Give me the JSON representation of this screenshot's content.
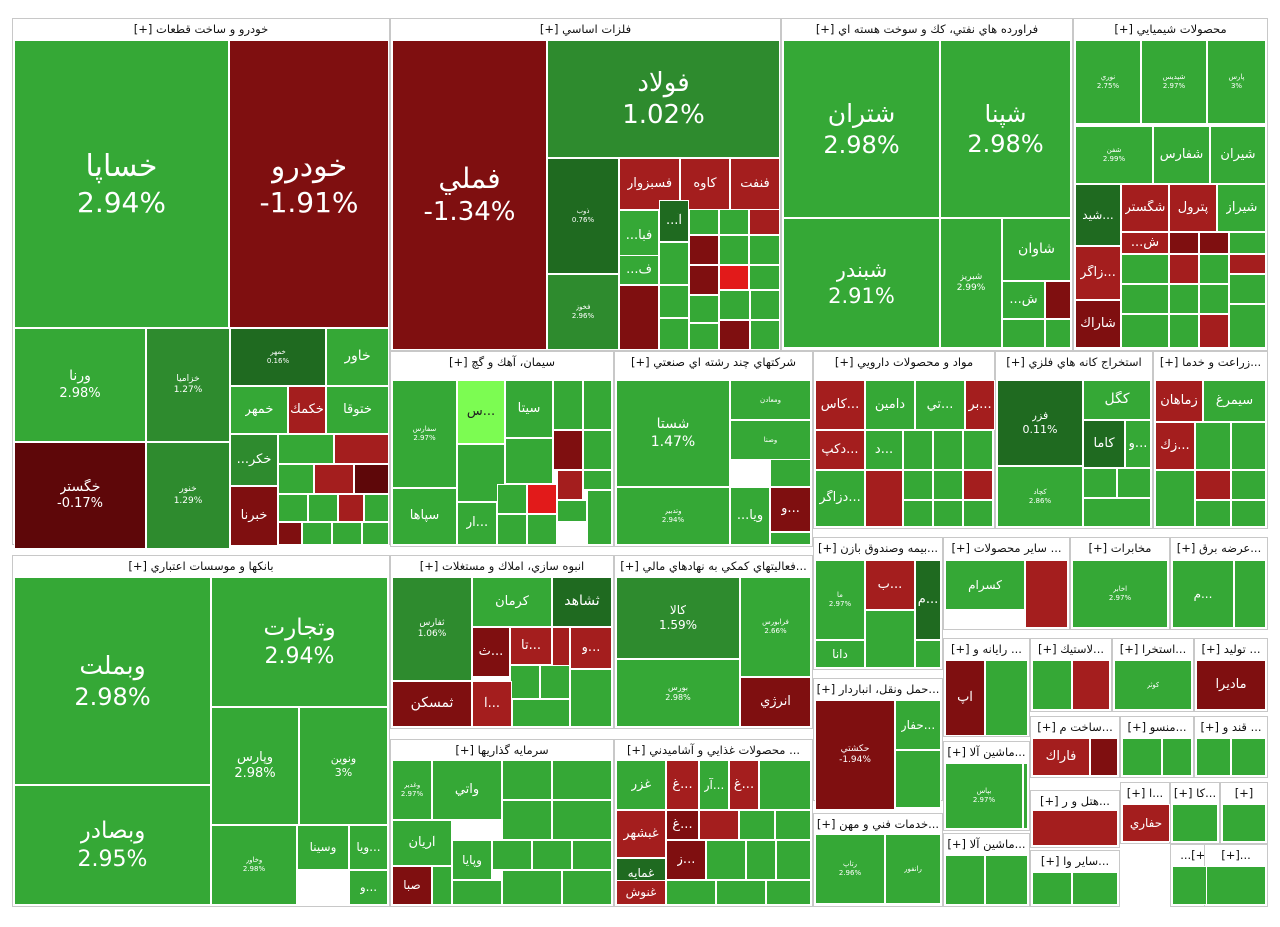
{
  "colors": {
    "pos_strong": "#35A836",
    "pos_light": "#49C23F",
    "pos_mid": "#2E8B2E",
    "pos_dark": "#1F6A20",
    "neg_mid": "#A41E1E",
    "neg_dark": "#7F0F10",
    "neg_deep": "#5E0709",
    "neg_bright": "#E21A1A",
    "lime": "#7CFC52",
    "grey": "#9E9E9E",
    "white": "#FFFFFF"
  },
  "chart_data": {
    "type": "treemap",
    "sectors": [
      {
        "name": "خودرو و ساخت قطعات [+]",
        "stocks": [
          {
            "name": "خساپا",
            "change": 2.94
          },
          {
            "name": "خودرو",
            "change": -1.91
          },
          {
            "name": "ورنا",
            "change": 2.98
          },
          {
            "name": "خزاميا",
            "change": 1.27
          },
          {
            "name": "خمهر",
            "change": 0.16
          },
          {
            "name": "خاور"
          },
          {
            "name": "خمهر"
          },
          {
            "name": "خكمك"
          },
          {
            "name": "ختوقا"
          },
          {
            "name": "خكر..."
          },
          {
            "name": "خگستر",
            "change": -0.17
          },
          {
            "name": "خنور",
            "change": 1.29
          },
          {
            "name": "خبرنا"
          }
        ]
      },
      {
        "name": "فلزات اساسي [+]",
        "stocks": [
          {
            "name": "فملي",
            "change": -1.34
          },
          {
            "name": "فولاد",
            "change": 1.02
          },
          {
            "name": "ذوب",
            "change": 0.76
          },
          {
            "name": "فخوز",
            "change": 2.96
          },
          {
            "name": "فنفت"
          },
          {
            "name": "كاوه"
          },
          {
            "name": "فسبزوار"
          },
          {
            "name": "فبا..."
          },
          {
            "name": "آ..."
          },
          {
            "name": "ف..."
          }
        ]
      },
      {
        "name": "فراورده هاي نفتي، كك و سوخت هسته اي [+]",
        "stocks": [
          {
            "name": "شتران",
            "change": 2.98
          },
          {
            "name": "شپنا",
            "change": 2.98
          },
          {
            "name": "شبندر",
            "change": 2.91
          },
          {
            "name": "شبريز",
            "change": 2.99
          },
          {
            "name": "شاوان"
          },
          {
            "name": "ش..."
          }
        ]
      },
      {
        "name": "محصولات شيميايي [+]",
        "stocks": [
          {
            "name": "نوري",
            "change": 2.75
          },
          {
            "name": "شپديس",
            "change": 2.97
          },
          {
            "name": "پارس",
            "change": 3
          },
          {
            "name": "شفن",
            "change": 2.99
          },
          {
            "name": "شفارس"
          },
          {
            "name": "شيران"
          },
          {
            "name": "...شيد"
          },
          {
            "name": "شگستر"
          },
          {
            "name": "پترول"
          },
          {
            "name": "شيراز"
          },
          {
            "name": "ش..."
          },
          {
            "name": "...زاگر"
          },
          {
            "name": "شاراك"
          }
        ]
      },
      {
        "name": "سيمان، آهك و گچ [+]",
        "stocks": [
          {
            "name": "سفارس",
            "change": 2.97
          },
          {
            "name": "...س"
          },
          {
            "name": "سيتا"
          },
          {
            "name": "سپاها"
          },
          {
            "name": "...ار"
          }
        ]
      },
      {
        "name": "شركتهاي چند رشته اي صنعتي [+]",
        "stocks": [
          {
            "name": "شستا",
            "change": 1.47
          },
          {
            "name": "وتدبير",
            "change": 2.94
          },
          {
            "name": "ومعادن"
          },
          {
            "name": "وصنا"
          },
          {
            "name": "ويا..."
          },
          {
            "name": "...و"
          }
        ]
      },
      {
        "name": "مواد و محصولات دارويي [+]",
        "stocks": [
          {
            "name": "...كاس"
          },
          {
            "name": "دامين"
          },
          {
            "name": "...تي"
          },
          {
            "name": "...دكپ"
          },
          {
            "name": "...د"
          },
          {
            "name": "...دزاگر"
          }
        ]
      },
      {
        "name": "استخراج كانه هاي فلزي [+]",
        "stocks": [
          {
            "name": "...بر"
          },
          {
            "name": "فزر",
            "change": 0.11
          },
          {
            "name": "كگل"
          },
          {
            "name": "كاما"
          },
          {
            "name": "...و"
          },
          {
            "name": "كچاد",
            "change": 2.86
          }
        ]
      },
      {
        "name": "...زراعت و خدما [+]",
        "stocks": [
          {
            "name": "زماهان"
          },
          {
            "name": "سيمرغ"
          },
          {
            "name": "...زك"
          }
        ]
      },
      {
        "name": "بانكها و موسسات اعتباري [+]",
        "stocks": [
          {
            "name": "وبملت",
            "change": 2.98
          },
          {
            "name": "وتجارت",
            "change": 2.94
          },
          {
            "name": "وپارس",
            "change": 2.98
          },
          {
            "name": "ونوين",
            "change": 3
          },
          {
            "name": "وبصادر",
            "change": 2.95
          },
          {
            "name": "وخاور",
            "change": 2.98
          },
          {
            "name": "وسينا"
          },
          {
            "name": "...ويا"
          },
          {
            "name": "...و"
          }
        ]
      },
      {
        "name": "انبوه سازي، املاك و مستغلات [+]",
        "stocks": [
          {
            "name": "ثفارس",
            "change": 1.06
          },
          {
            "name": "كرمان"
          },
          {
            "name": "ثشاهد"
          },
          {
            "name": "...ث"
          },
          {
            "name": "...تا"
          },
          {
            "name": "...و"
          },
          {
            "name": "ثمسكن"
          },
          {
            "name": "...آ"
          }
        ]
      },
      {
        "name": "...فعاليتهاي كمكي به نهادهاي مالي [+]",
        "stocks": [
          {
            "name": "كالا",
            "change": 1.59
          },
          {
            "name": "فرابورس",
            "change": 2.66
          },
          {
            "name": "بورس",
            "change": 2.98
          },
          {
            "name": "انرژي"
          }
        ]
      },
      {
        "name": "...بيمه وصندوق بازن [+]",
        "stocks": [
          {
            "name": "ما",
            "change": 2.97
          },
          {
            "name": "...ب"
          },
          {
            "name": "...م"
          },
          {
            "name": "دانا"
          }
        ]
      },
      {
        "name": "... ساير محصولات [+]",
        "stocks": [
          {
            "name": "كسرام"
          }
        ]
      },
      {
        "name": "مخابرات [+]",
        "stocks": [
          {
            "name": "اخابر",
            "change": 2.97
          }
        ]
      },
      {
        "name": "...عرضه برق [+]",
        "stocks": [
          {
            "name": "...م"
          }
        ]
      },
      {
        "name": "سرمايه گذاريها [+]",
        "stocks": [
          {
            "name": "وغدير",
            "change": 2.97
          },
          {
            "name": "واتي"
          },
          {
            "name": "آريان"
          },
          {
            "name": "وپايا"
          },
          {
            "name": "صبا"
          }
        ]
      },
      {
        "name": "... محصولات غذايي و آشاميدني [+]",
        "stocks": [
          {
            "name": "غزر"
          },
          {
            "name": "...غ"
          },
          {
            "name": "...آر"
          },
          {
            "name": "...غ"
          },
          {
            "name": "غبشهر"
          },
          {
            "name": "...غ"
          },
          {
            "name": "غمايه"
          },
          {
            "name": "...ز"
          },
          {
            "name": "غنوش"
          }
        ]
      },
      {
        "name": "...حمل ونقل، انباردار [+]",
        "stocks": [
          {
            "name": "حكشتي",
            "change": -1.94
          },
          {
            "name": "...حفار"
          }
        ]
      },
      {
        "name": "...خدمات فني و مهن [+]",
        "stocks": [
          {
            "name": "رتاپ",
            "change": 2.96
          },
          {
            "name": "رانفور"
          }
        ]
      },
      {
        "name": "... رايانه و [+]",
        "stocks": [
          {
            "name": "آپ"
          }
        ]
      },
      {
        "name": "...لاستيك [+]",
        "stocks": []
      },
      {
        "name": "...استخرا [+]",
        "stocks": [
          {
            "name": "كوثر"
          }
        ]
      },
      {
        "name": "... توليد [+]",
        "stocks": [
          {
            "name": "ماديرا"
          }
        ]
      },
      {
        "name": "...ساخت م [+]",
        "stocks": [
          {
            "name": "فاراك"
          }
        ]
      },
      {
        "name": "...منسو [+]",
        "stocks": []
      },
      {
        "name": "... قند و [+]",
        "stocks": []
      },
      {
        "name": "...ماشين آلا [+]",
        "stocks": [
          {
            "name": "بپاس",
            "change": 2.97
          }
        ]
      },
      {
        "name": "...هتل و ر [+]",
        "stocks": []
      },
      {
        "name": "...ا [+]",
        "stocks": [
          {
            "name": "حفاري"
          }
        ]
      },
      {
        "name": "...كا [+]",
        "stocks": []
      },
      {
        "name": "[+]",
        "stocks": []
      },
      {
        "name": "...ماشين آلا [+]",
        "stocks": []
      },
      {
        "name": "...ساير وا [+]",
        "stocks": []
      },
      {
        "name": "[+]...",
        "stocks": []
      },
      {
        "name": "...[+]",
        "stocks": []
      }
    ]
  }
}
